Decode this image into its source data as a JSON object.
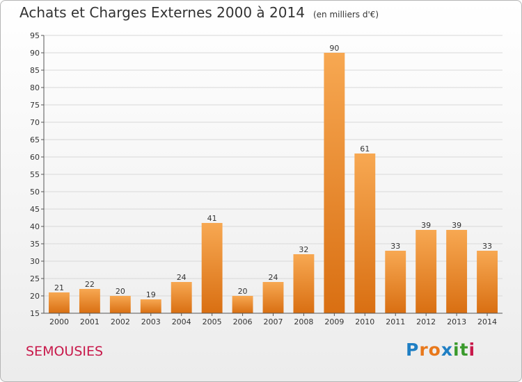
{
  "title": "Achats et Charges Externes 2000 à 2014",
  "unit": "(en milliers d'€)",
  "commune": "SEMOUSIES",
  "brand": {
    "letters": [
      "P",
      "r",
      "o",
      "x",
      "i",
      "t",
      "i"
    ],
    "colors": [
      "#1f7fc4",
      "#e8781b",
      "#e8781b",
      "#1f7fc4",
      "#3a9a2c",
      "#3a9a2c",
      "#c8184a"
    ]
  },
  "chart_data": {
    "type": "bar",
    "categories": [
      "2000",
      "2001",
      "2002",
      "2003",
      "2004",
      "2005",
      "2006",
      "2007",
      "2008",
      "2009",
      "2010",
      "2011",
      "2012",
      "2013",
      "2014"
    ],
    "values": [
      21,
      22,
      20,
      19,
      24,
      41,
      20,
      24,
      32,
      90,
      61,
      33,
      39,
      39,
      33
    ],
    "title": "Achats et Charges Externes 2000 à 2014",
    "xlabel": "",
    "ylabel": "",
    "ylim": [
      15,
      95
    ],
    "yticks": [
      15,
      20,
      25,
      30,
      35,
      40,
      45,
      50,
      55,
      60,
      65,
      70,
      75,
      80,
      85,
      90,
      95
    ],
    "grid": true,
    "bar_color": "#f08c2d"
  }
}
